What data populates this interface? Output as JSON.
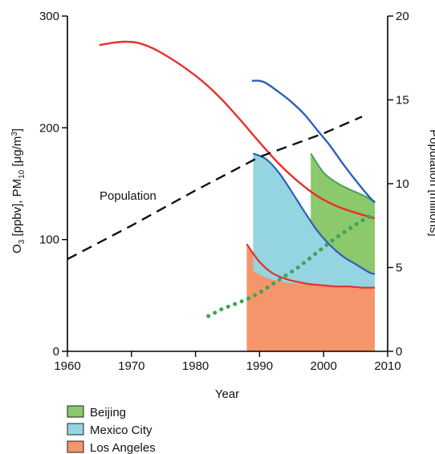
{
  "chart_data": {
    "type": "area",
    "xlabel": "Year",
    "ylabel_left": "O3 [ppbv], PM10 [μg/m3]",
    "ylabel_left_parts": {
      "o": "O",
      "o_sub": "3",
      "mid": " [ppbv], PM",
      "pm_sub": "10",
      "unit_pre": " [μg/m",
      "unit_sup": "3",
      "unit_post": "]"
    },
    "ylabel_right": "Population [millions]",
    "xlim": [
      1960,
      2010
    ],
    "ylim_left": [
      0,
      300
    ],
    "ylim_right": [
      0,
      20
    ],
    "x_ticks": [
      "1960",
      "1970",
      "1980",
      "1990",
      "2000",
      "2010"
    ],
    "y_left_ticks": [
      "0",
      "100",
      "200",
      "300"
    ],
    "y_right_ticks": [
      "0",
      "5",
      "10",
      "15",
      "20"
    ],
    "annotation": "Population",
    "areas": [
      {
        "name": "Los Angeles",
        "color": "#f5956b",
        "x": [
          1988,
          1990,
          1992,
          1994,
          1996,
          1998,
          2000,
          2002,
          2004,
          2006,
          2008
        ],
        "values": [
          96,
          80,
          70,
          65,
          62,
          60,
          59,
          58,
          58,
          57,
          57
        ]
      },
      {
        "name": "Mexico City",
        "color": "#94d5e1",
        "x": [
          1989,
          1991,
          1993,
          1995,
          1997,
          1999,
          2001,
          2003,
          2005,
          2007,
          2008
        ],
        "upper": [
          177,
          172,
          160,
          143,
          125,
          108,
          95,
          85,
          78,
          71,
          69
        ],
        "lower": [
          72,
          66,
          63,
          61,
          60,
          59,
          58,
          58,
          58,
          57,
          57
        ]
      },
      {
        "name": "Beijing",
        "color": "#8cc86c",
        "x": [
          1998,
          2000,
          2002,
          2004,
          2006,
          2008
        ],
        "upper": [
          177,
          160,
          151,
          145,
          140,
          134
        ]
      }
    ],
    "lines": [
      {
        "name": "Los Angeles O3",
        "axis": "left",
        "color": "#e8302a",
        "x": [
          1965,
          1967,
          1969,
          1971,
          1973,
          1975,
          1978,
          1981,
          1984,
          1987,
          1990,
          1993,
          1996,
          1999,
          2002,
          2005,
          2008
        ],
        "values": [
          274,
          276,
          277,
          276,
          272,
          266,
          255,
          242,
          226,
          207,
          187,
          168,
          152,
          139,
          130,
          124,
          119
        ]
      },
      {
        "name": "Mexico City O3",
        "axis": "left",
        "color": "#2e60b4",
        "x": [
          1988.8,
          1990,
          1991,
          1993,
          1995,
          1997,
          1999,
          2001,
          2003,
          2005,
          2007,
          2008
        ],
        "values": [
          242,
          242,
          240,
          232,
          223,
          212,
          198,
          184,
          168,
          153,
          139,
          133
        ]
      },
      {
        "name": "Population",
        "axis": "right",
        "style": "dashed",
        "color": "#111111",
        "x": [
          1960,
          1970,
          1980,
          1990,
          2000,
          2006
        ],
        "values": [
          5.5,
          7.5,
          9.6,
          11.6,
          13.0,
          14.0
        ]
      },
      {
        "name": "Beijing population",
        "axis": "right",
        "style": "dotted",
        "color": "#3fa45b",
        "x": [
          1982,
          1984,
          1986,
          1988,
          1990,
          1992,
          1994,
          1996,
          1998,
          2000,
          2002,
          2004,
          2006,
          2008
        ],
        "values": [
          2.1,
          2.5,
          2.8,
          3.1,
          3.5,
          4.0,
          4.5,
          5.0,
          5.6,
          6.2,
          6.8,
          7.3,
          7.8,
          8.2
        ]
      }
    ],
    "legend": {
      "placement": "bottom-left",
      "items": [
        {
          "label": "Beijing",
          "color": "#8cc86c"
        },
        {
          "label": "Mexico City",
          "color": "#94d5e1"
        },
        {
          "label": "Los Angeles",
          "color": "#f5956b"
        }
      ]
    },
    "grid": false
  }
}
